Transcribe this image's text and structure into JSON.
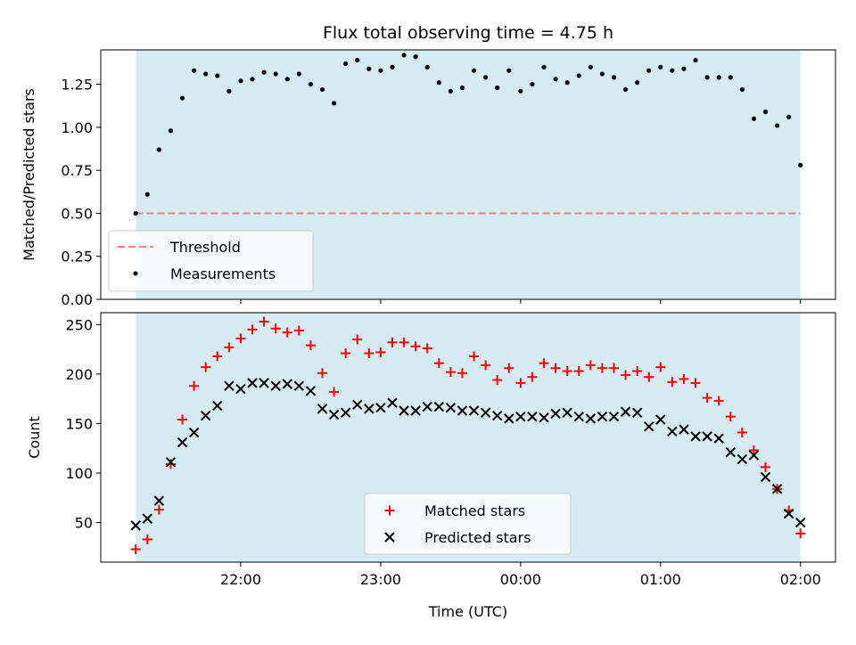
{
  "chart_data": [
    {
      "type": "scatter",
      "title": "Flux total observing time = 4.75 h",
      "xlabel": "",
      "ylabel": "Matched/Predicted stars",
      "x_unit": "hours UTC (starting 21:15, spacing 5 min)",
      "xlim": [
        "21:00",
        "02:15"
      ],
      "ylim": [
        0,
        1.45
      ],
      "yticks": [
        "0.00",
        "0.25",
        "0.50",
        "0.75",
        "1.00",
        "1.25"
      ],
      "shaded_span": [
        "21:15",
        "02:00"
      ],
      "shade_color": "#add8e6",
      "legend_position": "lower-left",
      "threshold": {
        "name": "Threshold",
        "value": 0.5,
        "style": "dashed",
        "color": "#f08080"
      },
      "series": [
        {
          "name": "Measurements",
          "color": "#000000",
          "marker": "dot",
          "values": [
            0.5,
            0.61,
            0.87,
            0.98,
            1.17,
            1.33,
            1.31,
            1.3,
            1.21,
            1.27,
            1.28,
            1.32,
            1.31,
            1.28,
            1.31,
            1.25,
            1.22,
            1.14,
            1.37,
            1.39,
            1.34,
            1.33,
            1.35,
            1.42,
            1.41,
            1.35,
            1.26,
            1.21,
            1.23,
            1.33,
            1.29,
            1.23,
            1.33,
            1.21,
            1.25,
            1.35,
            1.28,
            1.26,
            1.3,
            1.35,
            1.31,
            1.29,
            1.22,
            1.26,
            1.33,
            1.35,
            1.33,
            1.34,
            1.39,
            1.29,
            1.29,
            1.29,
            1.22,
            1.05,
            1.09,
            1.01,
            1.06,
            0.78
          ]
        }
      ]
    },
    {
      "type": "scatter",
      "title": "",
      "xlabel": "Time (UTC)",
      "ylabel": "Count",
      "xticks": [
        "22:00",
        "23:00",
        "00:00",
        "01:00",
        "02:00"
      ],
      "xlim": [
        "21:00",
        "02:15"
      ],
      "ylim": [
        10,
        262
      ],
      "yticks": [
        "50",
        "100",
        "150",
        "200",
        "250"
      ],
      "shaded_span": [
        "21:15",
        "02:00"
      ],
      "legend_position": "lower-center",
      "series": [
        {
          "name": "Matched stars",
          "color": "#ff0000",
          "marker": "plus",
          "values": [
            23,
            33,
            63,
            109,
            154,
            188,
            207,
            218,
            227,
            236,
            245,
            253,
            246,
            242,
            244,
            229,
            201,
            182,
            221,
            235,
            221,
            222,
            232,
            232,
            228,
            226,
            211,
            202,
            201,
            218,
            209,
            194,
            206,
            191,
            197,
            211,
            206,
            203,
            203,
            209,
            206,
            206,
            199,
            203,
            197,
            207,
            192,
            195,
            191,
            176,
            173,
            157,
            141,
            123,
            106,
            84,
            62,
            39
          ]
        },
        {
          "name": "Predicted stars",
          "color": "#000000",
          "marker": "x",
          "values": [
            47,
            54,
            72,
            111,
            131,
            141,
            158,
            168,
            188,
            185,
            191,
            191,
            188,
            190,
            188,
            183,
            165,
            159,
            161,
            169,
            165,
            166,
            171,
            163,
            163,
            167,
            167,
            166,
            163,
            163,
            161,
            158,
            155,
            157,
            157,
            156,
            160,
            161,
            157,
            155,
            157,
            157,
            162,
            161,
            147,
            154,
            142,
            144,
            137,
            137,
            135,
            121,
            114,
            118,
            96,
            84,
            59,
            50
          ]
        }
      ]
    }
  ]
}
